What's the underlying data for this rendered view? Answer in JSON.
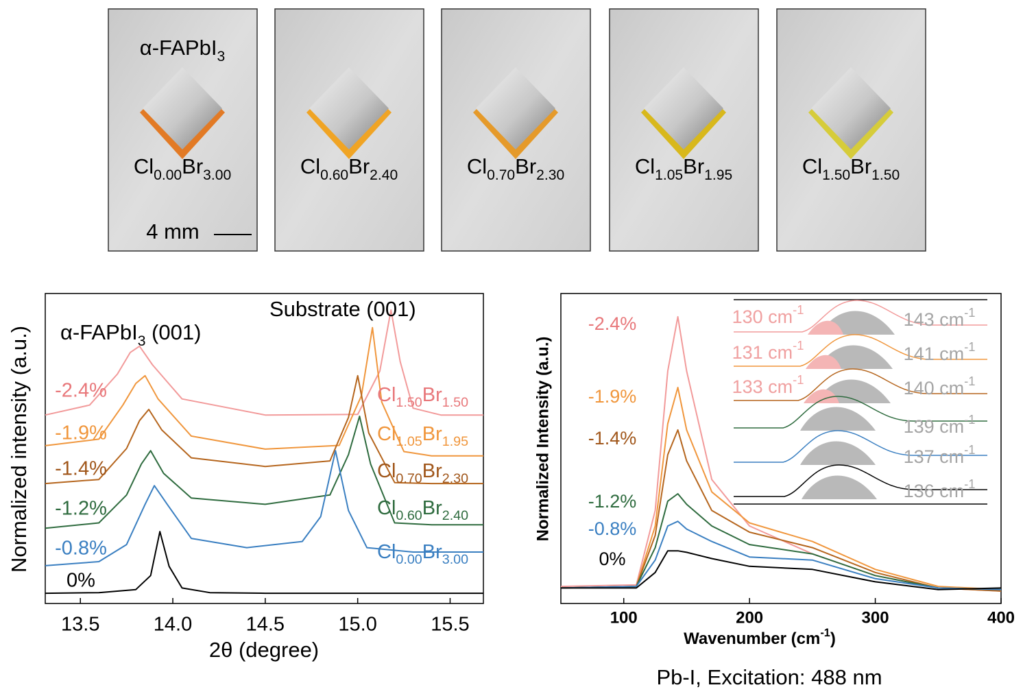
{
  "photos": {
    "title": [
      "α-FAPbI",
      "3"
    ],
    "samples": [
      [
        "Cl",
        "0.00",
        "Br",
        "3.00"
      ],
      [
        "Cl",
        "0.60",
        "Br",
        "2.40"
      ],
      [
        "Cl",
        "0.70",
        "Br",
        "2.30"
      ],
      [
        "Cl",
        "1.05",
        "Br",
        "1.95"
      ],
      [
        "Cl",
        "1.50",
        "Br",
        "1.50"
      ]
    ],
    "scale_bar": "4 mm"
  },
  "chart_data": [
    {
      "type": "line",
      "xlabel": "2θ (degree)",
      "ylabel": "Normalized intensity (a.u.)",
      "annotations": [
        [
          "α-FAPbI",
          "3",
          " (001)"
        ],
        [
          "Substrate (001)"
        ]
      ],
      "xlim": [
        13.31,
        15.68
      ],
      "xticks": [
        13.5,
        {
          "value": 14.0,
          "label": "14.0"
        },
        14.5,
        {
          "value": 15.0,
          "label": "15.0"
        },
        15.5
      ],
      "ylim": [
        0,
        10
      ],
      "series": [
        {
          "name": "-2.4%",
          "color": "#f29a9a",
          "label_color": "#e8777a",
          "composition": [
            "Cl",
            "1.50",
            "Br",
            "1.50"
          ],
          "x": [
            13.31,
            13.55,
            13.7,
            13.77,
            13.82,
            13.89,
            14.05,
            14.5,
            15.0,
            15.12,
            15.18,
            15.23,
            15.3,
            15.45,
            15.68
          ],
          "values": [
            6.08,
            6.4,
            7.4,
            8.1,
            8.3,
            7.7,
            6.6,
            6.08,
            6.1,
            7.5,
            9.47,
            7.8,
            6.3,
            6.08,
            6.08
          ]
        },
        {
          "name": "-1.9%",
          "color": "#f0963c",
          "label_color": "#f0963c",
          "composition": [
            "Cl",
            "1.05",
            "Br",
            "1.95"
          ],
          "x": [
            13.31,
            13.6,
            13.73,
            13.8,
            13.85,
            13.92,
            14.1,
            14.5,
            14.9,
            15.02,
            15.08,
            15.13,
            15.25,
            15.4,
            15.68
          ],
          "values": [
            5.09,
            5.3,
            6.4,
            7.1,
            7.35,
            6.6,
            5.4,
            4.98,
            5.1,
            6.7,
            8.9,
            6.5,
            4.9,
            4.76,
            4.76
          ]
        },
        {
          "name": "-1.4%",
          "color": "#b5651d",
          "label_color": "#a0561a",
          "composition": [
            "Cl",
            "0.70",
            "Br",
            "2.30"
          ],
          "x": [
            13.31,
            13.6,
            13.75,
            13.82,
            13.87,
            13.94,
            14.1,
            14.5,
            14.85,
            14.95,
            15.0,
            15.06,
            15.2,
            15.4,
            15.68
          ],
          "values": [
            3.87,
            4.0,
            5.0,
            5.9,
            6.26,
            5.6,
            4.7,
            4.42,
            4.6,
            6.0,
            7.35,
            5.5,
            3.9,
            3.87,
            3.87
          ]
        },
        {
          "name": "-1.2%",
          "color": "#2e6b3e",
          "label_color": "#2e6b3e",
          "composition": [
            "Cl",
            "0.60",
            "Br",
            "2.40"
          ],
          "x": [
            13.31,
            13.6,
            13.75,
            13.83,
            13.88,
            13.95,
            14.1,
            14.5,
            14.85,
            14.95,
            15.01,
            15.07,
            15.2,
            15.4,
            15.68
          ],
          "values": [
            2.43,
            2.6,
            3.5,
            4.5,
            4.93,
            4.2,
            3.4,
            3.2,
            3.5,
            4.8,
            6.04,
            4.5,
            2.6,
            2.54,
            2.54
          ]
        },
        {
          "name": "-0.8%",
          "color": "#3a7fc1",
          "label_color": "#3a7fc1",
          "composition": [
            "Cl",
            "0.00",
            "Br",
            "3.00"
          ],
          "x": [
            13.31,
            13.6,
            13.75,
            13.85,
            13.9,
            13.97,
            14.1,
            14.4,
            14.7,
            14.8,
            14.88,
            14.95,
            15.05,
            15.3,
            15.68
          ],
          "values": [
            1.22,
            1.35,
            1.9,
            3.2,
            3.8,
            3.2,
            2.1,
            1.8,
            2.0,
            2.8,
            4.93,
            3.0,
            1.8,
            1.66,
            1.66
          ]
        },
        {
          "name": "0%",
          "color": "#000000",
          "label_color": "#000000",
          "x": [
            13.31,
            13.6,
            13.8,
            13.88,
            13.93,
            13.98,
            14.05,
            14.2,
            14.5,
            15.0,
            15.68
          ],
          "values": [
            0.33,
            0.35,
            0.45,
            0.9,
            2.32,
            1.2,
            0.5,
            0.35,
            0.33,
            0.33,
            0.33
          ]
        }
      ]
    },
    {
      "type": "line",
      "xlabel": [
        "Wavenumber (cm",
        "-1",
        ")"
      ],
      "ylabel": "Normalized Intensity (a.u.)",
      "caption": "Pb-I, Excitation: 488 nm",
      "xlim": [
        50,
        400
      ],
      "xticks": [
        100,
        200,
        300,
        400
      ],
      "ylim": [
        0,
        10
      ],
      "x": [
        50,
        110,
        125,
        135,
        143,
        150,
        170,
        200,
        250,
        300,
        350,
        400
      ],
      "series": [
        {
          "name": "-2.4%",
          "color": "#f29a9a",
          "label_color": "#e8777a",
          "values": [
            0.55,
            0.6,
            3.0,
            7.5,
            9.25,
            7.5,
            4.0,
            2.5,
            1.6,
            0.9,
            0.5,
            0.4
          ]
        },
        {
          "name": "-1.9%",
          "color": "#f0963c",
          "label_color": "#f0963c",
          "values": [
            0.5,
            0.55,
            2.5,
            5.8,
            6.97,
            5.6,
            3.6,
            2.6,
            2.0,
            1.1,
            0.55,
            0.45
          ]
        },
        {
          "name": "-1.4%",
          "color": "#b5651d",
          "label_color": "#a0561a",
          "values": [
            0.5,
            0.55,
            2.2,
            4.8,
            5.6,
            4.6,
            3.0,
            2.3,
            1.8,
            1.0,
            0.5,
            0.4
          ]
        },
        {
          "name": "-1.2%",
          "color": "#2e6b3e",
          "label_color": "#2e6b3e",
          "values": [
            0.5,
            0.55,
            1.8,
            3.3,
            3.54,
            3.2,
            2.5,
            1.9,
            1.6,
            0.9,
            0.5,
            0.45
          ]
        },
        {
          "name": "-0.8%",
          "color": "#3a7fc1",
          "label_color": "#3a7fc1",
          "values": [
            0.5,
            0.55,
            1.4,
            2.5,
            2.65,
            2.4,
            2.0,
            1.5,
            1.4,
            0.8,
            0.5,
            0.45
          ]
        },
        {
          "name": "0%",
          "color": "#000000",
          "label_color": "#000000",
          "values": [
            0.5,
            0.5,
            1.0,
            1.7,
            1.7,
            1.65,
            1.45,
            1.2,
            1.1,
            0.7,
            0.45,
            0.5
          ]
        }
      ],
      "inset": [
        {
          "left": [
            "130 cm",
            "-1"
          ],
          "right": [
            "143 cm",
            "-1"
          ]
        },
        {
          "left": [
            "131 cm",
            "-1"
          ],
          "right": [
            "141 cm",
            "-1"
          ]
        },
        {
          "left": [
            "133 cm",
            "-1"
          ],
          "right": [
            "140 cm",
            "-1"
          ]
        },
        {
          "right": [
            "139 cm",
            "-1"
          ]
        },
        {
          "right": [
            "137 cm",
            "-1"
          ]
        },
        {
          "right": [
            "136 cm",
            "-1"
          ]
        }
      ]
    }
  ]
}
